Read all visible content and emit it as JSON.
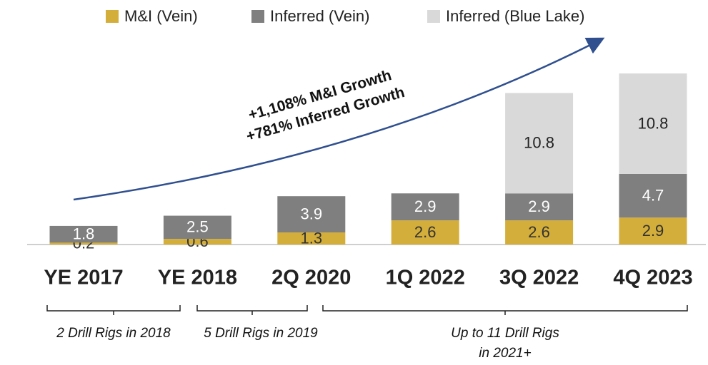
{
  "chart_data": {
    "type": "stacked_bar",
    "categories": [
      "YE 2017",
      "YE 2018",
      "2Q 2020",
      "1Q 2022",
      "3Q 2022",
      "4Q 2023"
    ],
    "series": [
      {
        "name": "M&I (Vein)",
        "color": "#d4ae3a",
        "values": [
          0.2,
          0.6,
          1.3,
          2.6,
          2.6,
          2.9
        ]
      },
      {
        "name": "Inferred (Vein)",
        "color": "#7f7f7f",
        "values": [
          1.8,
          2.5,
          3.9,
          2.9,
          2.9,
          4.7
        ]
      },
      {
        "name": "Inferred (Blue Lake)",
        "color": "#d9d9d9",
        "values": [
          null,
          null,
          null,
          null,
          10.8,
          10.8
        ]
      }
    ],
    "annotations": [
      "+1,108% M&I Growth",
      "+781% Inferred Growth"
    ],
    "notes": [
      [
        "2 Drill Rigs in 2018"
      ],
      [
        "5 Drill Rigs in 2019"
      ],
      [
        "Up to 11 Drill Rigs",
        "in 2021+"
      ]
    ],
    "legend": "top"
  }
}
